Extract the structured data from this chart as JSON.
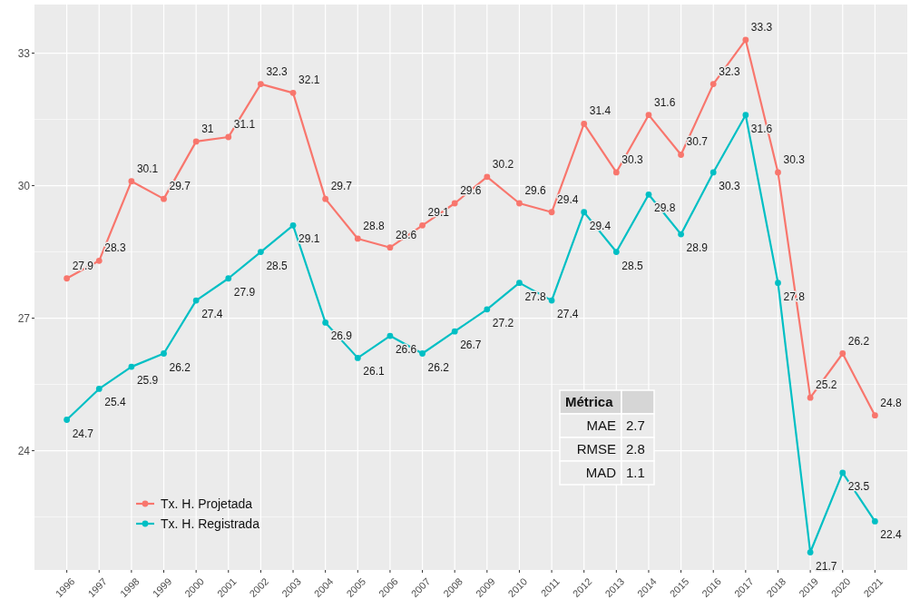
{
  "chart_data": {
    "type": "line",
    "categories": [
      "1996",
      "1997",
      "1998",
      "1999",
      "2000",
      "2001",
      "2002",
      "2003",
      "2004",
      "2005",
      "2006",
      "2007",
      "2008",
      "2009",
      "2010",
      "2011",
      "2012",
      "2013",
      "2014",
      "2015",
      "2016",
      "2017",
      "2018",
      "2019",
      "2020",
      "2021"
    ],
    "series": [
      {
        "name": "Tx. H. Projetada",
        "color": "#f8766d",
        "values": [
          27.9,
          28.3,
          30.1,
          29.7,
          31,
          31.1,
          32.3,
          32.1,
          29.7,
          28.8,
          28.6,
          29.1,
          29.6,
          30.2,
          29.6,
          29.4,
          31.4,
          30.3,
          31.6,
          30.7,
          32.3,
          33.3,
          30.3,
          25.2,
          26.2,
          24.8
        ]
      },
      {
        "name": "Tx. H. Registrada",
        "color": "#00bfc4",
        "values": [
          24.7,
          25.4,
          25.9,
          26.2,
          27.4,
          27.9,
          28.5,
          29.1,
          26.9,
          26.1,
          26.6,
          26.2,
          26.7,
          27.2,
          27.8,
          27.4,
          29.4,
          28.5,
          29.8,
          28.9,
          30.3,
          31.6,
          27.8,
          21.7,
          23.5,
          22.4
        ]
      }
    ],
    "ylim": [
      21.3,
      34.1
    ],
    "yticks": [
      24,
      27,
      30,
      33
    ],
    "grid": true,
    "legend": "bottom left",
    "marker": "circle",
    "line_style": "solid",
    "data_labels": true,
    "annotations": [
      "Métrica",
      null,
      "MAE",
      "2.7",
      "RMSE",
      "2.8",
      "MAD",
      "1.1"
    ]
  }
}
